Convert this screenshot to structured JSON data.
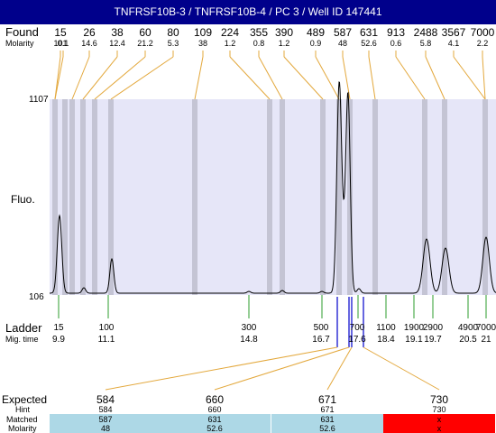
{
  "title": "TNFRSF10B-3 / TNFRSF10B-4 / PC 3 / Well ID 147441",
  "labels": {
    "found": "Found",
    "molarity": "Molarity",
    "fluo": "Fluo.",
    "ladder": "Ladder",
    "mig_time": "Mig. time",
    "expected": "Expected",
    "hint": "Hint",
    "matched": "Matched",
    "molarity_row": "Molarity"
  },
  "chart_data": {
    "type": "line",
    "y_axis": {
      "min_label": "106",
      "max_label": "1107",
      "min": 106,
      "max": 1107
    },
    "found_peaks": [
      {
        "size": "15",
        "molarity": "101"
      },
      {
        "size": "",
        "molarity": "0.1"
      },
      {
        "size": "26",
        "molarity": "14.6"
      },
      {
        "size": "38",
        "molarity": "12.4"
      },
      {
        "size": "60",
        "molarity": "21.2"
      },
      {
        "size": "80",
        "molarity": "5.3"
      },
      {
        "size": "109",
        "molarity": "38"
      },
      {
        "size": "224",
        "molarity": "1.2"
      },
      {
        "size": "355",
        "molarity": "0.8"
      },
      {
        "size": "390",
        "molarity": "1.2"
      },
      {
        "size": "489",
        "molarity": "0.9"
      },
      {
        "size": "587",
        "molarity": "48"
      },
      {
        "size": "631",
        "molarity": "52.6"
      },
      {
        "size": "913",
        "molarity": "0.6"
      },
      {
        "size": "2488",
        "molarity": "5.8"
      },
      {
        "size": "3567",
        "molarity": "4.1"
      },
      {
        "size": "7000",
        "molarity": "2.2"
      }
    ],
    "ladder": [
      {
        "size": "15",
        "time": "9.9"
      },
      {
        "size": "100",
        "time": "11.1"
      },
      {
        "size": "300",
        "time": "14.8"
      },
      {
        "size": "500",
        "time": "16.7"
      },
      {
        "size": "700",
        "time": "17.6"
      },
      {
        "size": "1100",
        "time": "18.4"
      },
      {
        "size": "1900",
        "time": "19.1"
      },
      {
        "size": "2900",
        "time": "19.7"
      },
      {
        "size": "4900",
        "time": "20.5"
      },
      {
        "size": "7000",
        "time": "21"
      }
    ],
    "expected_table": [
      {
        "expected": "584",
        "hint": "584",
        "matched": "587",
        "molarity": "48",
        "status": "matched"
      },
      {
        "expected": "660",
        "hint": "660",
        "matched": "631",
        "molarity": "52.6",
        "status": "matched"
      },
      {
        "expected": "671",
        "hint": "671",
        "matched": "631",
        "molarity": "52.6",
        "status": "matched"
      },
      {
        "expected": "730",
        "hint": "730",
        "matched": "x",
        "molarity": "x",
        "status": "missing"
      }
    ]
  },
  "colors": {
    "title_bg": "#00008b",
    "plot_bg": "#e6e6f8",
    "band": "#c4c4d4",
    "found_line": "#e3a83c",
    "ladder_line": "#2e9e2e",
    "marker": "#0000cc",
    "match_fill": "#add8e6",
    "missing_fill": "#ff0000"
  }
}
